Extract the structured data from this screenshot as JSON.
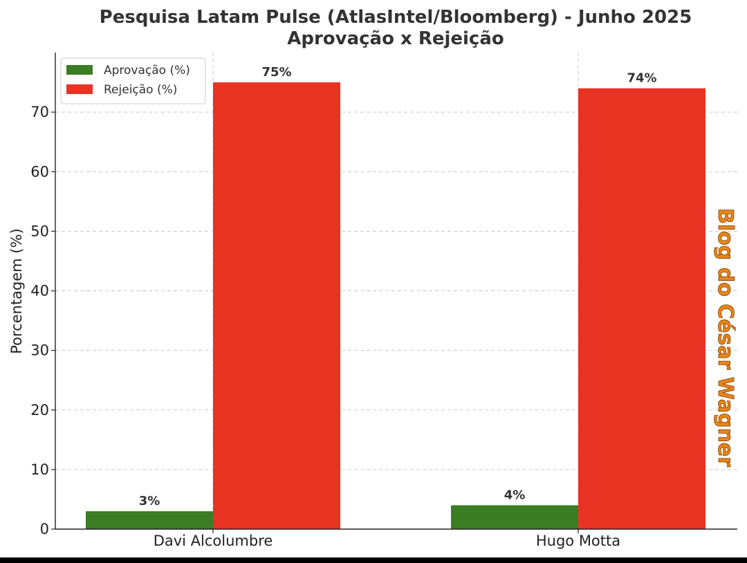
{
  "chart_data": {
    "type": "bar",
    "title": "Pesquisa Latam Pulse (AtlasIntel/Bloomberg) - Junho 2025",
    "subtitle": "Aprovação x Rejeição",
    "xlabel": "",
    "ylabel": "Porcentagem (%)",
    "ylim": [
      0,
      80
    ],
    "yticks": [
      0,
      10,
      20,
      30,
      40,
      50,
      60,
      70
    ],
    "categories": [
      "Davi Alcolumbre",
      "Hugo Motta"
    ],
    "series": [
      {
        "name": "Aprovação (%)",
        "values": [
          3,
          4
        ],
        "labels": [
          "3%",
          "4%"
        ],
        "color": "#3a7d22"
      },
      {
        "name": "Rejeição (%)",
        "values": [
          75,
          74
        ],
        "labels": [
          "75%",
          "74%"
        ],
        "color": "#e83323"
      }
    ],
    "grid": true,
    "legend_position": "top-left",
    "watermark": "Blog do César Wagner"
  }
}
